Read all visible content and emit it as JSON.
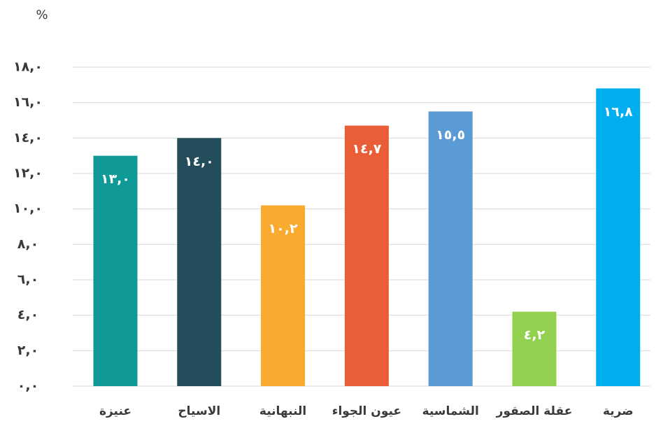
{
  "chart_data": {
    "type": "bar",
    "y_label": "%",
    "categories": [
      "عنيزة",
      "الاسياح",
      "النبهانية",
      "عيون الجواء",
      "الشماسية",
      "عقلة الصقور",
      "ضرية"
    ],
    "values": [
      13.0,
      14.0,
      10.2,
      14.7,
      15.5,
      4.2,
      16.8
    ],
    "value_labels": [
      "١٣,٠",
      "١٤,٠",
      "١٠,٢",
      "١٤,٧",
      "١٥,٥",
      "٤,٢",
      "١٦,٨"
    ],
    "colors": [
      "#0f9a98",
      "#234d5b",
      "#f9ab30",
      "#e95e37",
      "#5b9bd5",
      "#92d050",
      "#00adee"
    ],
    "ylim": [
      0,
      18
    ],
    "yticks": [
      {
        "value": 0,
        "label": "٠,٠"
      },
      {
        "value": 2,
        "label": "٢,٠"
      },
      {
        "value": 4,
        "label": "٤,٠"
      },
      {
        "value": 6,
        "label": "٦,٠"
      },
      {
        "value": 8,
        "label": "٨,٠"
      },
      {
        "value": 10,
        "label": "١٠,٠"
      },
      {
        "value": 12,
        "label": "١٢,٠"
      },
      {
        "value": 14,
        "label": "١٤,٠"
      },
      {
        "value": 16,
        "label": "١٦,٠"
      },
      {
        "value": 18,
        "label": "١٨,٠"
      }
    ],
    "grid": true
  }
}
